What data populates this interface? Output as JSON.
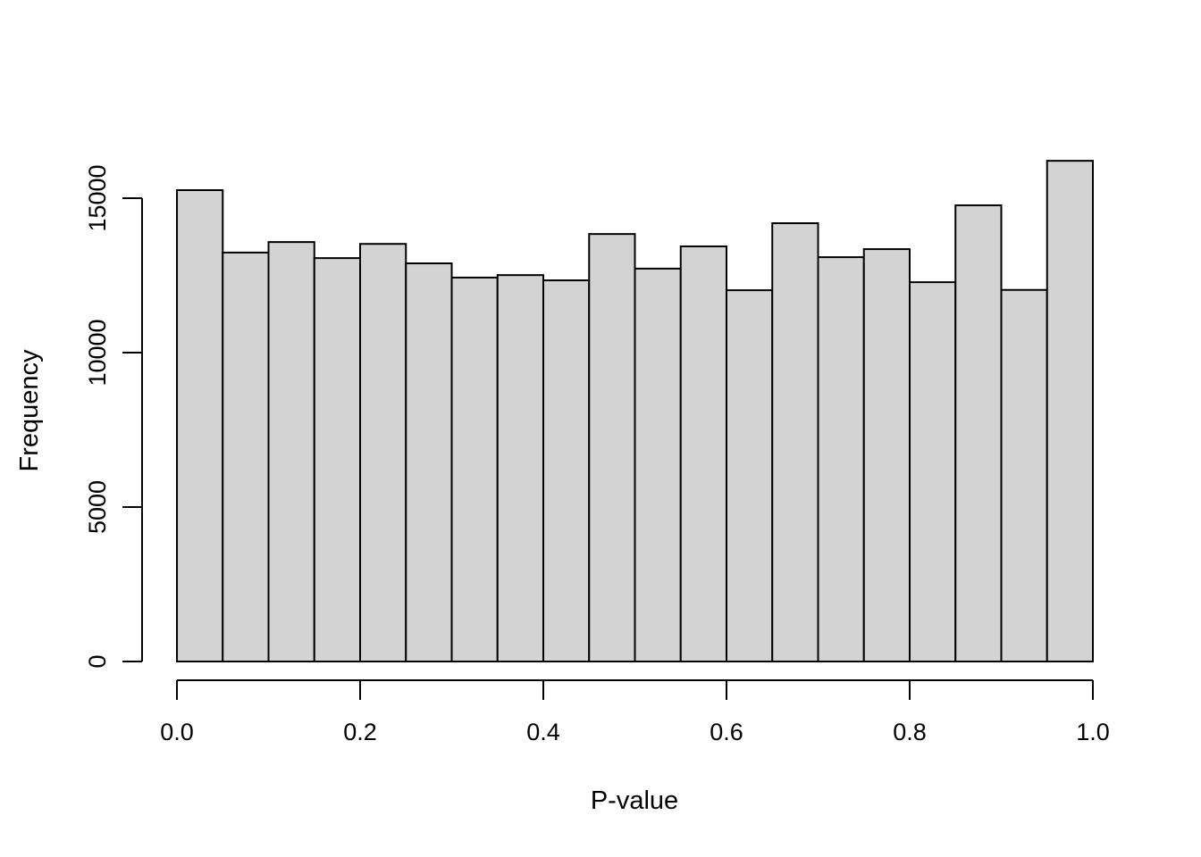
{
  "chart_data": {
    "type": "bar",
    "subtype": "histogram",
    "title": "",
    "xlabel": "P-value",
    "ylabel": "Frequency",
    "bin_start": 0.0,
    "bin_width": 0.05,
    "bin_edges": [
      0.0,
      0.05,
      0.1,
      0.15,
      0.2,
      0.25,
      0.3,
      0.35,
      0.4,
      0.45,
      0.5,
      0.55,
      0.6,
      0.65,
      0.7,
      0.75,
      0.8,
      0.85,
      0.9,
      0.95,
      1.0
    ],
    "counts": [
      15260,
      13240,
      13580,
      13060,
      13520,
      12890,
      12430,
      12510,
      12340,
      13840,
      12720,
      13440,
      12020,
      14190,
      13090,
      13350,
      12280,
      14770,
      12030,
      16210
    ],
    "xlim": [
      0.0,
      1.0
    ],
    "ylim": [
      0,
      16300
    ],
    "xticks": {
      "values": [
        0.0,
        0.2,
        0.4,
        0.6,
        0.8,
        1.0
      ],
      "labels": [
        "0.0",
        "0.2",
        "0.4",
        "0.6",
        "0.8",
        "1.0"
      ]
    },
    "yticks": {
      "values": [
        0,
        5000,
        10000,
        15000
      ],
      "labels": [
        "0",
        "5000",
        "10000",
        "15000"
      ]
    },
    "grid": "off",
    "legend": "none",
    "colors": {
      "bar_fill": "#d3d3d3",
      "bar_stroke": "#000000",
      "axis": "#000000",
      "background": "#ffffff"
    }
  }
}
